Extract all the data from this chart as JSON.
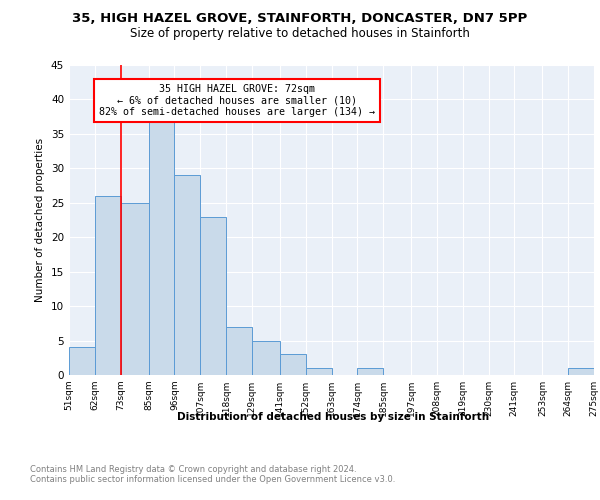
{
  "title1": "35, HIGH HAZEL GROVE, STAINFORTH, DONCASTER, DN7 5PP",
  "title2": "Size of property relative to detached houses in Stainforth",
  "xlabel": "Distribution of detached houses by size in Stainforth",
  "ylabel": "Number of detached properties",
  "bins": [
    51,
    62,
    73,
    85,
    96,
    107,
    118,
    129,
    141,
    152,
    163,
    174,
    185,
    197,
    208,
    219,
    230,
    241,
    253,
    264,
    275
  ],
  "counts": [
    4,
    26,
    25,
    37,
    29,
    23,
    7,
    5,
    3,
    1,
    0,
    1,
    0,
    0,
    0,
    0,
    0,
    0,
    0,
    1
  ],
  "bar_color": "#c9daea",
  "bar_edge_color": "#5b9bd5",
  "red_line_x": 73,
  "annotation_text": "35 HIGH HAZEL GROVE: 72sqm\n← 6% of detached houses are smaller (10)\n82% of semi-detached houses are larger (134) →",
  "annotation_box_color": "white",
  "annotation_box_edge_color": "red",
  "ylim": [
    0,
    45
  ],
  "yticks": [
    0,
    5,
    10,
    15,
    20,
    25,
    30,
    35,
    40,
    45
  ],
  "tick_labels": [
    "51sqm",
    "62sqm",
    "73sqm",
    "85sqm",
    "96sqm",
    "107sqm",
    "118sqm",
    "129sqm",
    "141sqm",
    "152sqm",
    "163sqm",
    "174sqm",
    "185sqm",
    "197sqm",
    "208sqm",
    "219sqm",
    "230sqm",
    "241sqm",
    "253sqm",
    "264sqm",
    "275sqm"
  ],
  "footer_text": "Contains HM Land Registry data © Crown copyright and database right 2024.\nContains public sector information licensed under the Open Government Licence v3.0.",
  "bg_color": "#eaf0f8",
  "title1_fontsize": 9.5,
  "title2_fontsize": 8.5,
  "ylabel_fontsize": 7.5,
  "tick_fontsize": 6.5,
  "xlabel_fontsize": 7.5,
  "footer_fontsize": 6.0
}
